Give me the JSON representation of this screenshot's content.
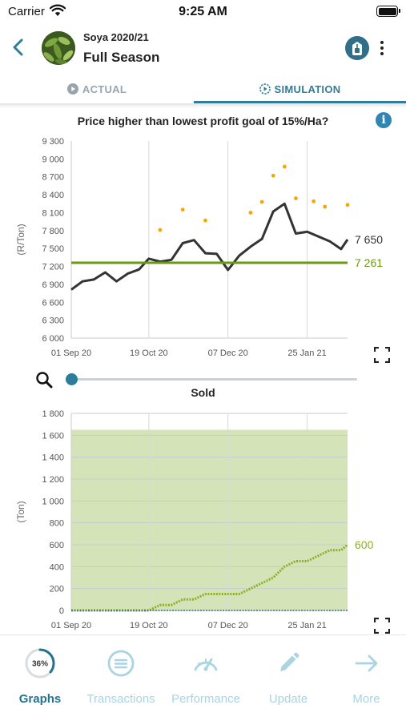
{
  "status_bar": {
    "carrier": "Carrier",
    "time": "9:25 AM"
  },
  "header": {
    "subtitle": "Soya 2020/21",
    "title": "Full Season"
  },
  "tabs": [
    {
      "label": "ACTUAL",
      "icon": "play-circle-icon",
      "active": false
    },
    {
      "label": "SIMULATION",
      "icon": "play-circle-dashed-icon",
      "active": true
    }
  ],
  "colors": {
    "accent": "#2f7d9a",
    "price_line": "#333333",
    "target_line": "#6a9a0f",
    "simulated_dots": "#f5a800",
    "sold_area": "#d4e4b8",
    "sold_line": "#8bb026",
    "inactive_nav": "#a9d4e3"
  },
  "chart_data": [
    {
      "type": "line",
      "title": "Price higher than lowest profit goal of 15%/Ha?",
      "ylabel": "(R/Ton)",
      "ylim": [
        6000,
        9300
      ],
      "yticks": [
        "9 300",
        "9 000",
        "8 700",
        "8 400",
        "8 100",
        "7 800",
        "7 500",
        "7 200",
        "6 900",
        "6 600",
        "6 300",
        "6 000"
      ],
      "ytick_values": [
        9300,
        9000,
        8700,
        8400,
        8100,
        7800,
        7500,
        7200,
        6900,
        6600,
        6300,
        6000
      ],
      "xlim": [
        "2020-09-01",
        "2021-02-19"
      ],
      "xticks": [
        {
          "label": "01 Sep 20",
          "date": "2020-09-01"
        },
        {
          "label": "19 Oct 20",
          "date": "2020-10-19"
        },
        {
          "label": "07 Dec 20",
          "date": "2020-12-07"
        },
        {
          "label": "25 Jan 21",
          "date": "2021-01-25"
        }
      ],
      "grid": {
        "x": true,
        "y": false
      },
      "series": [
        {
          "kind": "line",
          "points": [
            [
              "2020-09-01",
              6810
            ],
            [
              "2020-09-08",
              6950
            ],
            [
              "2020-09-15",
              6980
            ],
            [
              "2020-09-22",
              7100
            ],
            [
              "2020-09-29",
              6950
            ],
            [
              "2020-10-06",
              7080
            ],
            [
              "2020-10-13",
              7150
            ],
            [
              "2020-10-19",
              7330
            ],
            [
              "2020-10-26",
              7280
            ],
            [
              "2020-11-02",
              7310
            ],
            [
              "2020-11-09",
              7590
            ],
            [
              "2020-11-16",
              7640
            ],
            [
              "2020-11-23",
              7420
            ],
            [
              "2020-11-30",
              7410
            ],
            [
              "2020-12-07",
              7140
            ],
            [
              "2020-12-14",
              7380
            ],
            [
              "2020-12-21",
              7530
            ],
            [
              "2020-12-28",
              7660
            ],
            [
              "2021-01-04",
              8120
            ],
            [
              "2021-01-11",
              8250
            ],
            [
              "2021-01-18",
              7750
            ],
            [
              "2021-01-25",
              7780
            ],
            [
              "2021-02-01",
              7700
            ],
            [
              "2021-02-08",
              7620
            ],
            [
              "2021-02-15",
              7490
            ],
            [
              "2021-02-19",
              7650
            ]
          ],
          "end_value": "7 650"
        },
        {
          "kind": "scatter",
          "points": [
            [
              "2020-10-26",
              7810
            ],
            [
              "2020-11-09",
              8150
            ],
            [
              "2020-11-23",
              7970
            ],
            [
              "2020-12-21",
              8100
            ],
            [
              "2020-12-28",
              8280
            ],
            [
              "2021-01-04",
              8720
            ],
            [
              "2021-01-11",
              8870
            ],
            [
              "2021-01-18",
              8340
            ],
            [
              "2021-01-29",
              8290
            ],
            [
              "2021-02-05",
              8200
            ],
            [
              "2021-02-19",
              8230
            ]
          ]
        },
        {
          "kind": "hline",
          "value": 7261,
          "end_value": "7 261"
        }
      ]
    },
    {
      "type": "area",
      "title": "Sold",
      "ylabel": "(Ton)",
      "ylim": [
        0,
        1800
      ],
      "yticks": [
        "1 800",
        "1 600",
        "1 400",
        "1 200",
        "1 000",
        "800",
        "600",
        "400",
        "200",
        "0"
      ],
      "ytick_values": [
        1800,
        1600,
        1400,
        1200,
        1000,
        800,
        600,
        400,
        200,
        0
      ],
      "xlim": [
        "2020-09-01",
        "2021-02-19"
      ],
      "xticks": [
        {
          "label": "01 Sep 20",
          "date": "2020-09-01"
        },
        {
          "label": "19 Oct 20",
          "date": "2020-10-19"
        },
        {
          "label": "07 Dec 20",
          "date": "2020-12-07"
        },
        {
          "label": "25 Jan 21",
          "date": "2021-01-25"
        }
      ],
      "grid": {
        "x": true,
        "y": true
      },
      "series": [
        {
          "kind": "band",
          "value": 1650
        },
        {
          "kind": "step",
          "points": [
            [
              "2020-09-01",
              0
            ],
            [
              "2020-10-19",
              0
            ],
            [
              "2020-10-26",
              50
            ],
            [
              "2020-11-02",
              50
            ],
            [
              "2020-11-09",
              100
            ],
            [
              "2020-11-16",
              100
            ],
            [
              "2020-11-23",
              150
            ],
            [
              "2020-11-30",
              150
            ],
            [
              "2020-12-07",
              150
            ],
            [
              "2020-12-14",
              150
            ],
            [
              "2020-12-21",
              200
            ],
            [
              "2020-12-28",
              250
            ],
            [
              "2021-01-04",
              300
            ],
            [
              "2021-01-11",
              400
            ],
            [
              "2021-01-18",
              450
            ],
            [
              "2021-01-25",
              450
            ],
            [
              "2021-02-01",
              500
            ],
            [
              "2021-02-08",
              550
            ],
            [
              "2021-02-15",
              550
            ],
            [
              "2021-02-19",
              600
            ]
          ],
          "end_value": "600"
        }
      ]
    }
  ],
  "slider": {
    "value": 0.0
  },
  "bottom_nav": {
    "items": [
      {
        "label": "Graphs",
        "icon": "progress-ring-icon",
        "badge": "36%",
        "progress": 0.36,
        "active": true
      },
      {
        "label": "Transactions",
        "icon": "list-circle-icon",
        "active": false
      },
      {
        "label": "Performance",
        "icon": "gauge-icon",
        "active": false
      },
      {
        "label": "Update",
        "icon": "pencil-icon",
        "active": false
      },
      {
        "label": "More",
        "icon": "arrow-right-icon",
        "active": false
      }
    ]
  }
}
